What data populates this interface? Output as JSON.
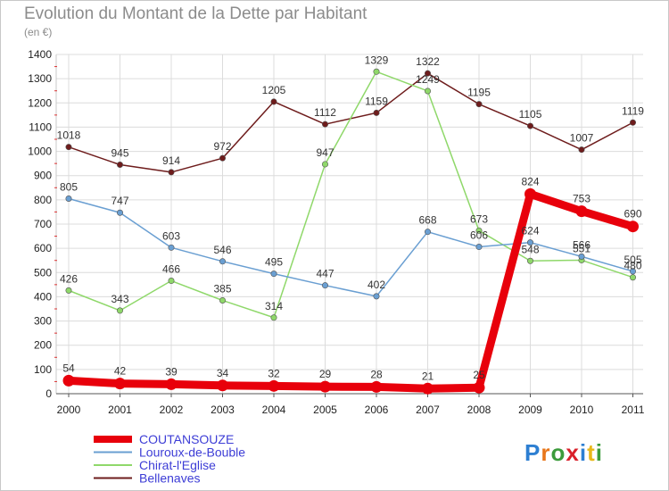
{
  "title": "Evolution du Montant de la Dette par Habitant",
  "subtitle": "(en €)",
  "logo": {
    "text": "Proxiti",
    "colors": [
      "#2d7fd2",
      "#e8761a",
      "#3c9b3c",
      "#d9202a",
      "#2d7fd2",
      "#e8b81a",
      "#3c9b3c"
    ]
  },
  "chart_data": {
    "type": "line",
    "x": [
      "2000",
      "2001",
      "2002",
      "2003",
      "2004",
      "2005",
      "2006",
      "2007",
      "2008",
      "2009",
      "2010",
      "2011"
    ],
    "ylim": [
      0,
      1400
    ],
    "yticks": [
      "0",
      "100",
      "200",
      "300",
      "400",
      "500",
      "600",
      "700",
      "800",
      "900",
      "1000",
      "1100",
      "1200",
      "1300",
      "1400"
    ],
    "grid": true,
    "legend_position": "bottom-left",
    "series": [
      {
        "name": "COUTANSOUZE",
        "color": "#e8000b",
        "values": [
          54,
          42,
          39,
          34,
          32,
          29,
          28,
          21,
          25,
          824,
          753,
          690
        ],
        "labels": [
          "54",
          "42",
          "39",
          "34",
          "32",
          "29",
          "28",
          "21",
          "25",
          "824",
          "753",
          "690"
        ]
      },
      {
        "name": "Louroux-de-Bouble",
        "color": "#6a9fd2",
        "values": [
          805,
          747,
          603,
          546,
          495,
          447,
          402,
          668,
          606,
          624,
          566,
          505
        ],
        "labels": [
          "805",
          "747",
          "603",
          "546",
          "495",
          "447",
          "402",
          "668",
          "606",
          "624",
          "566",
          "505"
        ]
      },
      {
        "name": "Chirat-l'Eglise",
        "color": "#8fd86a",
        "values": [
          426,
          343,
          466,
          385,
          314,
          947,
          1329,
          1249,
          673,
          548,
          551,
          480
        ],
        "labels": [
          "426",
          "343",
          "466",
          "385",
          "314",
          "947",
          "1329",
          "1249",
          "673",
          "548",
          "551",
          "480"
        ]
      },
      {
        "name": "Bellenaves",
        "color": "#6e1c1c",
        "values": [
          1018,
          945,
          914,
          972,
          1205,
          1112,
          1159,
          1322,
          1195,
          1105,
          1007,
          1119
        ],
        "labels": [
          "1018",
          "945",
          "914",
          "972",
          "1205",
          "1112",
          "1159",
          "1322",
          "1195",
          "1105",
          "1007",
          "1119"
        ]
      }
    ]
  }
}
